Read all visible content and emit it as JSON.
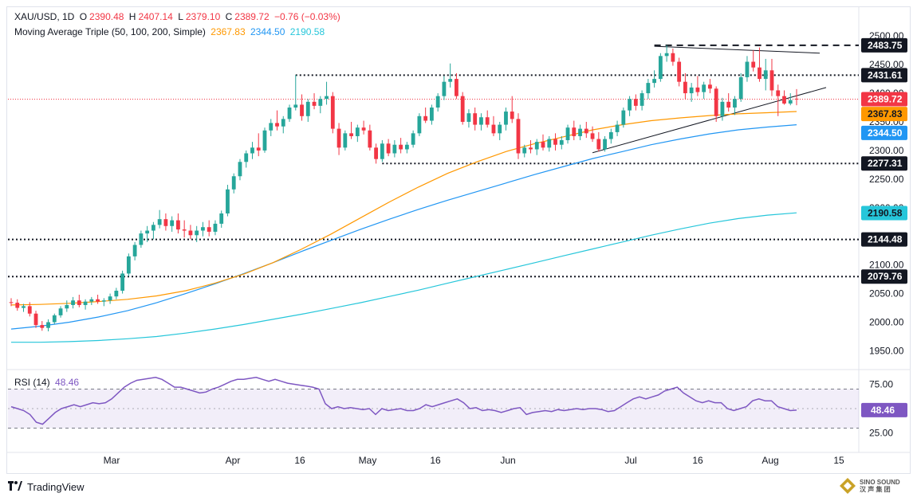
{
  "header": {
    "symbol": "XAU/USD, 1D",
    "open_label": "O",
    "open": "2390.48",
    "high_label": "H",
    "high": "2407.14",
    "low_label": "L",
    "low": "2379.10",
    "close_label": "C",
    "close": "2389.72",
    "change": "−0.76 (−0.03%)",
    "ma_title": "Moving Average Triple (50, 100, 200, Simple)",
    "ma50": "2367.83",
    "ma100": "2344.50",
    "ma200": "2190.58"
  },
  "rsi_header": {
    "label": "RSI (14)",
    "value": "48.46"
  },
  "footer": {
    "brand": "TradingView",
    "watermark_1": "SINO SOUND",
    "watermark_2": "汉 声 集 团"
  },
  "colors": {
    "up": "#26a69a",
    "down": "#f23645",
    "ma50": "#ff9800",
    "ma100": "#2196f3",
    "ma200": "#26c6da",
    "rsi": "#7e57c2"
  },
  "chart_data": [
    {
      "type": "candlestick",
      "ylim": [
        1920,
        2510
      ],
      "y_ticks": [
        1950,
        2000,
        2050,
        2100,
        2150,
        2200,
        2250,
        2300,
        2350,
        2400,
        2450,
        2500
      ],
      "x_labels": [
        "Mar",
        "Apr",
        "16",
        "May",
        "16",
        "Jun",
        "Jul",
        "16",
        "Aug",
        "15"
      ],
      "price_labels": [
        {
          "value": 2483.75,
          "text": "2483.75",
          "style": "level"
        },
        {
          "value": 2431.61,
          "text": "2431.61",
          "style": "level"
        },
        {
          "value": 2389.72,
          "text": "2389.72",
          "style": "last"
        },
        {
          "value": 2367.83,
          "text": "2367.83",
          "style": "ma50"
        },
        {
          "value": 2344.5,
          "text": "2344.50",
          "style": "ma100"
        },
        {
          "value": 2277.31,
          "text": "2277.31",
          "style": "level"
        },
        {
          "value": 2190.58,
          "text": "2190.58",
          "style": "ma200"
        },
        {
          "value": 2144.48,
          "text": "2144.48",
          "style": "level"
        },
        {
          "value": 2079.76,
          "text": "2079.76",
          "style": "level"
        }
      ],
      "horizontal_levels": [
        2431.61,
        2277.31,
        2144.48,
        2079.76
      ],
      "ohlc": [
        [
          2035,
          2042,
          2028,
          2034
        ],
        [
          2034,
          2040,
          2020,
          2025
        ],
        [
          2025,
          2032,
          2018,
          2028
        ],
        [
          2028,
          2035,
          2010,
          2015
        ],
        [
          2015,
          2020,
          1990,
          1995
        ],
        [
          1995,
          2002,
          1985,
          1990
        ],
        [
          1990,
          2005,
          1984,
          2000
        ],
        [
          2000,
          2015,
          1996,
          2012
        ],
        [
          2012,
          2028,
          2008,
          2024
        ],
        [
          2024,
          2038,
          2018,
          2030
        ],
        [
          2030,
          2044,
          2024,
          2038
        ],
        [
          2038,
          2048,
          2026,
          2030
        ],
        [
          2030,
          2040,
          2022,
          2036
        ],
        [
          2036,
          2044,
          2030,
          2040
        ],
        [
          2040,
          2048,
          2032,
          2036
        ],
        [
          2036,
          2042,
          2028,
          2038
        ],
        [
          2038,
          2050,
          2032,
          2045
        ],
        [
          2045,
          2060,
          2040,
          2055
        ],
        [
          2055,
          2090,
          2050,
          2085
        ],
        [
          2085,
          2120,
          2080,
          2115
        ],
        [
          2115,
          2140,
          2108,
          2135
        ],
        [
          2135,
          2160,
          2130,
          2155
        ],
        [
          2155,
          2168,
          2140,
          2160
        ],
        [
          2160,
          2175,
          2145,
          2170
        ],
        [
          2170,
          2196,
          2164,
          2180
        ],
        [
          2180,
          2190,
          2160,
          2168
        ],
        [
          2168,
          2185,
          2158,
          2178
        ],
        [
          2178,
          2190,
          2155,
          2162
        ],
        [
          2162,
          2178,
          2148,
          2160
        ],
        [
          2160,
          2170,
          2145,
          2152
        ],
        [
          2152,
          2168,
          2140,
          2160
        ],
        [
          2160,
          2175,
          2150,
          2166
        ],
        [
          2166,
          2178,
          2150,
          2158
        ],
        [
          2158,
          2178,
          2152,
          2172
        ],
        [
          2172,
          2195,
          2165,
          2190
        ],
        [
          2190,
          2240,
          2185,
          2232
        ],
        [
          2232,
          2260,
          2225,
          2255
        ],
        [
          2255,
          2285,
          2248,
          2280
        ],
        [
          2280,
          2300,
          2270,
          2295
        ],
        [
          2295,
          2315,
          2285,
          2305
        ],
        [
          2305,
          2330,
          2290,
          2300
        ],
        [
          2300,
          2340,
          2296,
          2335
        ],
        [
          2335,
          2355,
          2325,
          2348
        ],
        [
          2348,
          2370,
          2335,
          2342
        ],
        [
          2342,
          2360,
          2330,
          2355
        ],
        [
          2355,
          2380,
          2350,
          2375
        ],
        [
          2375,
          2432,
          2370,
          2380
        ],
        [
          2380,
          2398,
          2352,
          2360
        ],
        [
          2360,
          2390,
          2350,
          2385
        ],
        [
          2385,
          2400,
          2372,
          2378
        ],
        [
          2378,
          2395,
          2365,
          2390
        ],
        [
          2390,
          2420,
          2380,
          2395
        ],
        [
          2395,
          2402,
          2330,
          2338
        ],
        [
          2338,
          2348,
          2292,
          2305
        ],
        [
          2305,
          2335,
          2300,
          2330
        ],
        [
          2330,
          2350,
          2320,
          2325
        ],
        [
          2325,
          2345,
          2315,
          2340
        ],
        [
          2340,
          2352,
          2328,
          2335
        ],
        [
          2335,
          2345,
          2300,
          2305
        ],
        [
          2305,
          2312,
          2277,
          2285
        ],
        [
          2285,
          2318,
          2280,
          2312
        ],
        [
          2312,
          2320,
          2290,
          2295
        ],
        [
          2295,
          2318,
          2288,
          2310
        ],
        [
          2310,
          2322,
          2295,
          2302
        ],
        [
          2302,
          2315,
          2295,
          2310
        ],
        [
          2310,
          2335,
          2305,
          2330
        ],
        [
          2330,
          2365,
          2325,
          2360
        ],
        [
          2360,
          2375,
          2348,
          2352
        ],
        [
          2352,
          2380,
          2345,
          2375
        ],
        [
          2375,
          2400,
          2368,
          2395
        ],
        [
          2395,
          2430,
          2388,
          2420
        ],
        [
          2420,
          2452,
          2410,
          2425
        ],
        [
          2425,
          2435,
          2390,
          2395
        ],
        [
          2395,
          2402,
          2345,
          2350
        ],
        [
          2350,
          2372,
          2340,
          2365
        ],
        [
          2365,
          2375,
          2335,
          2345
        ],
        [
          2345,
          2365,
          2335,
          2358
        ],
        [
          2358,
          2370,
          2340,
          2345
        ],
        [
          2345,
          2360,
          2325,
          2330
        ],
        [
          2330,
          2350,
          2318,
          2345
        ],
        [
          2345,
          2375,
          2335,
          2368
        ],
        [
          2368,
          2395,
          2348,
          2355
        ],
        [
          2355,
          2365,
          2285,
          2295
        ],
        [
          2295,
          2310,
          2288,
          2305
        ],
        [
          2305,
          2318,
          2295,
          2302
        ],
        [
          2302,
          2320,
          2292,
          2315
        ],
        [
          2315,
          2328,
          2300,
          2305
        ],
        [
          2305,
          2325,
          2298,
          2320
        ],
        [
          2320,
          2330,
          2300,
          2310
        ],
        [
          2310,
          2325,
          2302,
          2318
        ],
        [
          2318,
          2345,
          2312,
          2340
        ],
        [
          2340,
          2352,
          2318,
          2325
        ],
        [
          2325,
          2345,
          2318,
          2338
        ],
        [
          2338,
          2350,
          2322,
          2330
        ],
        [
          2330,
          2342,
          2315,
          2320
        ],
        [
          2320,
          2332,
          2298,
          2302
        ],
        [
          2302,
          2325,
          2298,
          2320
        ],
        [
          2320,
          2338,
          2312,
          2332
        ],
        [
          2332,
          2352,
          2325,
          2345
        ],
        [
          2345,
          2375,
          2340,
          2370
        ],
        [
          2370,
          2395,
          2360,
          2390
        ],
        [
          2390,
          2398,
          2370,
          2378
        ],
        [
          2378,
          2405,
          2370,
          2400
        ],
        [
          2400,
          2425,
          2390,
          2418
        ],
        [
          2418,
          2440,
          2410,
          2425
        ],
        [
          2425,
          2470,
          2420,
          2465
        ],
        [
          2465,
          2484,
          2455,
          2470
        ],
        [
          2470,
          2478,
          2448,
          2455
        ],
        [
          2455,
          2462,
          2412,
          2420
        ],
        [
          2420,
          2435,
          2390,
          2400
        ],
        [
          2400,
          2418,
          2385,
          2410
        ],
        [
          2410,
          2430,
          2395,
          2402
        ],
        [
          2402,
          2420,
          2390,
          2415
        ],
        [
          2415,
          2425,
          2400,
          2408
        ],
        [
          2408,
          2412,
          2350,
          2360
        ],
        [
          2360,
          2392,
          2352,
          2385
        ],
        [
          2385,
          2400,
          2368,
          2375
        ],
        [
          2375,
          2395,
          2362,
          2390
        ],
        [
          2390,
          2435,
          2385,
          2428
        ],
        [
          2428,
          2465,
          2420,
          2455
        ],
        [
          2455,
          2475,
          2438,
          2445
        ],
        [
          2445,
          2480,
          2420,
          2425
        ],
        [
          2425,
          2460,
          2405,
          2440
        ],
        [
          2440,
          2460,
          2395,
          2405
        ],
        [
          2405,
          2415,
          2360,
          2395
        ],
        [
          2395,
          2405,
          2380,
          2382
        ],
        [
          2382,
          2400,
          2379,
          2388
        ],
        [
          2390.48,
          2407.14,
          2379.1,
          2389.72
        ]
      ],
      "ma50": [
        2030,
        2031,
        2033,
        2036,
        2040,
        2046,
        2055,
        2068,
        2084,
        2104,
        2128,
        2154,
        2182,
        2210,
        2236,
        2260,
        2280,
        2298,
        2312,
        2324,
        2336,
        2345,
        2352,
        2357,
        2361,
        2364,
        2366,
        2368
      ],
      "ma100": [
        1988,
        1993,
        2000,
        2009,
        2020,
        2034,
        2050,
        2067,
        2085,
        2104,
        2124,
        2143,
        2162,
        2180,
        2197,
        2213,
        2228,
        2243,
        2258,
        2272,
        2286,
        2298,
        2310,
        2320,
        2329,
        2336,
        2341,
        2345
      ],
      "ma200": [
        1965,
        1965,
        1966,
        1968,
        1971,
        1975,
        1981,
        1988,
        1996,
        2005,
        2014,
        2024,
        2034,
        2045,
        2056,
        2068,
        2080,
        2092,
        2104,
        2116,
        2128,
        2140,
        2152,
        2163,
        2173,
        2181,
        2187,
        2191
      ]
    },
    {
      "type": "line",
      "name": "RSI (14)",
      "ylim": [
        10,
        90
      ],
      "y_ticks": [
        25,
        75
      ],
      "y_tick_labels": [
        "25.00",
        "75.00"
      ],
      "band": [
        30,
        70
      ],
      "last_label": "48.46",
      "values": [
        52,
        50,
        48,
        44,
        36,
        34,
        40,
        46,
        50,
        52,
        54,
        52,
        54,
        56,
        55,
        56,
        60,
        66,
        72,
        76,
        79,
        80,
        81,
        82,
        80,
        76,
        72,
        72,
        70,
        68,
        66,
        67,
        70,
        72,
        75,
        78,
        80,
        80,
        81,
        82,
        80,
        78,
        80,
        78,
        76,
        75,
        74,
        73,
        72,
        70,
        55,
        50,
        52,
        50,
        51,
        50,
        49,
        50,
        44,
        50,
        48,
        49,
        50,
        48,
        48,
        50,
        54,
        52,
        54,
        56,
        58,
        60,
        56,
        50,
        51,
        48,
        49,
        48,
        46,
        48,
        50,
        51,
        44,
        46,
        47,
        48,
        47,
        49,
        48,
        49,
        50,
        49,
        50,
        50,
        49,
        47,
        48,
        52,
        56,
        60,
        62,
        60,
        62,
        64,
        68,
        70,
        72,
        66,
        62,
        58,
        56,
        58,
        56,
        56,
        50,
        48,
        50,
        52,
        58,
        60,
        58,
        58,
        52,
        50,
        48,
        48.46
      ]
    }
  ]
}
